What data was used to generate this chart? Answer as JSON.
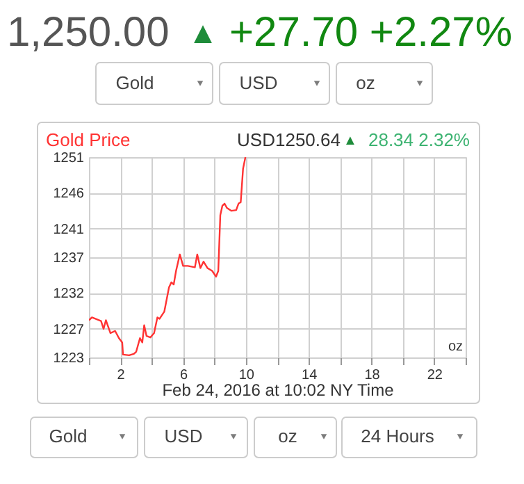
{
  "chart_data": {
    "type": "line",
    "title": "Gold Price",
    "xlabel": "Feb 24, 2016 at 10:02 NY Time",
    "annotations": [
      "1,250.00",
      "▲",
      "+27.70 +2.27%",
      "USD1250.64",
      "▲",
      "28.34 2.32%",
      "oz",
      "Gold",
      "USD",
      "oz",
      "Gold",
      "USD",
      "oz",
      "24 Hours"
    ],
    "xlim": [
      0,
      24
    ],
    "xticks": [
      {
        "value": 0,
        "label": null
      },
      2,
      {
        "value": 4,
        "label": null
      },
      6,
      {
        "value": 8,
        "label": null
      },
      10,
      {
        "value": 12,
        "label": null
      },
      14,
      {
        "value": 16,
        "label": null
      },
      18,
      {
        "value": 20,
        "label": null
      },
      22,
      {
        "value": 24,
        "label": null
      }
    ],
    "ylim": [
      1223,
      1251
    ],
    "yticks": [
      1223,
      1227,
      1232,
      1237,
      1241,
      1246,
      1251
    ],
    "grid": true,
    "marker": "none",
    "line_style": "solid",
    "series": [
      {
        "color": "#ff3333",
        "x": [
          0,
          0.19,
          0.77,
          0.93,
          1.08,
          1.37,
          1.67,
          1.91,
          2.12,
          2.17,
          2.56,
          2.86,
          3.01,
          3.25,
          3.4,
          3.52,
          3.67,
          3.91,
          4.15,
          4.36,
          4.5,
          4.8,
          5.1,
          5.25,
          5.4,
          5.55,
          5.79,
          6.0,
          6.3,
          6.75,
          6.9,
          7.1,
          7.3,
          7.55,
          7.85,
          8.1,
          8.24,
          8.37,
          8.5,
          8.64,
          8.79,
          9.08,
          9.38,
          9.53,
          9.67,
          9.82,
          9.97
        ],
        "values": [
          1228.2,
          1228.6,
          1228.1,
          1227.0,
          1228.2,
          1226.4,
          1226.7,
          1225.7,
          1225.1,
          1223.4,
          1223.3,
          1223.5,
          1223.8,
          1225.7,
          1225.1,
          1227.5,
          1226.0,
          1225.8,
          1226.4,
          1228.6,
          1228.4,
          1229.4,
          1232.8,
          1233.5,
          1233.2,
          1235.1,
          1237.4,
          1235.8,
          1235.8,
          1235.6,
          1237.4,
          1235.5,
          1236.4,
          1235.5,
          1235.1,
          1234.3,
          1235.1,
          1242.9,
          1244.2,
          1244.5,
          1243.9,
          1243.5,
          1243.6,
          1244.5,
          1244.7,
          1249.4,
          1251.0
        ]
      }
    ]
  }
}
